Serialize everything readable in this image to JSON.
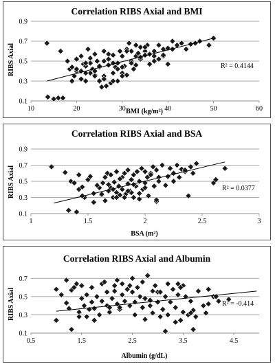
{
  "chart_data": [
    {
      "type": "scatter",
      "title": "Correlation RIBS Axial and BMI",
      "xlabel": "BMI (kg/m²)",
      "ylabel": "RIBS Axial",
      "xlim": [
        10,
        60
      ],
      "ylim": [
        0.1,
        0.9
      ],
      "xticks": [
        "10",
        "20",
        "30",
        "40",
        "50",
        "60"
      ],
      "yticks": [
        "0.1",
        "0.3",
        "0.5",
        "0.7",
        "0.9"
      ],
      "grid": "horizontal",
      "trendline": {
        "x": [
          13.5,
          50
        ],
        "y": [
          0.3,
          0.73
        ]
      },
      "annotation": "R² = 0.4144",
      "marker_color": "#1a1a1a",
      "points": {
        "x": [
          13.5,
          13.7,
          15,
          16,
          17,
          16.5,
          18,
          18.5,
          19,
          19.5,
          20,
          20,
          21,
          21,
          21.5,
          22,
          22,
          22.5,
          23,
          23,
          23.5,
          24,
          24,
          24.5,
          25,
          25,
          25.5,
          26,
          26,
          26.5,
          27,
          27,
          27.5,
          28,
          28,
          28.5,
          29,
          29,
          29.5,
          30,
          30,
          30.5,
          31,
          31,
          31.5,
          32,
          32,
          32.5,
          33,
          33,
          33.5,
          34,
          34,
          35,
          35,
          35.5,
          36,
          36,
          37,
          37,
          38,
          38,
          39,
          39,
          40,
          40,
          41,
          42,
          43,
          44,
          45,
          46,
          47,
          49,
          50,
          20,
          22,
          24,
          26,
          28,
          30,
          32,
          34,
          25,
          27,
          29,
          31,
          33,
          23,
          21,
          19,
          26,
          28,
          30,
          35,
          37,
          39,
          41,
          24,
          22
        ],
        "y": [
          0.68,
          0.14,
          0.12,
          0.13,
          0.13,
          0.6,
          0.5,
          0.42,
          0.3,
          0.35,
          0.52,
          0.4,
          0.55,
          0.32,
          0.47,
          0.45,
          0.3,
          0.62,
          0.38,
          0.48,
          0.42,
          0.36,
          0.57,
          0.5,
          0.44,
          0.3,
          0.24,
          0.6,
          0.35,
          0.25,
          0.46,
          0.57,
          0.28,
          0.38,
          0.56,
          0.44,
          0.3,
          0.48,
          0.6,
          0.38,
          0.55,
          0.45,
          0.62,
          0.36,
          0.68,
          0.5,
          0.6,
          0.42,
          0.66,
          0.55,
          0.58,
          0.52,
          0.64,
          0.6,
          0.56,
          0.66,
          0.57,
          0.47,
          0.6,
          0.55,
          0.52,
          0.66,
          0.62,
          0.55,
          0.47,
          0.63,
          0.7,
          0.66,
          0.68,
          0.62,
          0.67,
          0.68,
          0.7,
          0.66,
          0.73,
          0.42,
          0.48,
          0.4,
          0.5,
          0.3,
          0.35,
          0.48,
          0.54,
          0.45,
          0.52,
          0.42,
          0.6,
          0.46,
          0.53,
          0.4,
          0.44,
          0.32,
          0.48,
          0.44,
          0.64,
          0.5,
          0.56,
          0.62,
          0.35,
          0.38
        ]
      }
    },
    {
      "type": "scatter",
      "title": "Correlation RIBS Axial and BSA",
      "xlabel": "BSA (m²)",
      "ylabel": "RIBS Axial",
      "xlim": [
        1,
        3
      ],
      "ylim": [
        0.1,
        0.9
      ],
      "xticks": [
        "1",
        "1.5",
        "2",
        "2.5",
        "3"
      ],
      "yticks": [
        "0.1",
        "0.3",
        "0.5",
        "0.7",
        "0.9"
      ],
      "grid": "horizontal",
      "trendline": {
        "x": [
          1.2,
          2.7
        ],
        "y": [
          0.23,
          0.74
        ]
      },
      "annotation": "R² = 0.0377",
      "marker_color": "#1a1a1a",
      "points": {
        "x": [
          1.18,
          1.3,
          1.33,
          1.35,
          1.38,
          1.4,
          1.42,
          1.45,
          1.47,
          1.5,
          1.52,
          1.55,
          1.58,
          1.6,
          1.62,
          1.63,
          1.65,
          1.67,
          1.68,
          1.7,
          1.7,
          1.72,
          1.73,
          1.75,
          1.75,
          1.77,
          1.78,
          1.8,
          1.8,
          1.82,
          1.83,
          1.85,
          1.85,
          1.87,
          1.88,
          1.9,
          1.9,
          1.92,
          1.93,
          1.95,
          1.95,
          1.97,
          1.98,
          2.0,
          2.0,
          2.02,
          2.03,
          2.05,
          2.07,
          2.08,
          2.1,
          2.1,
          2.12,
          2.15,
          2.18,
          2.2,
          2.22,
          2.25,
          2.28,
          2.3,
          2.32,
          2.35,
          2.38,
          2.4,
          2.42,
          2.45,
          2.6,
          2.62,
          2.7,
          1.42,
          1.45,
          2.1,
          2.12,
          1.95,
          1.88,
          1.72,
          1.78,
          1.82,
          1.68,
          1.58,
          2.05,
          2.25,
          2.35,
          1.65,
          1.75,
          1.85,
          1.9,
          2.0,
          1.62,
          1.55
        ],
        "y": [
          0.68,
          0.61,
          0.14,
          0.5,
          0.48,
          0.12,
          0.58,
          0.43,
          0.3,
          0.52,
          0.56,
          0.35,
          0.45,
          0.42,
          0.33,
          0.48,
          0.55,
          0.6,
          0.38,
          0.42,
          0.58,
          0.3,
          0.49,
          0.36,
          0.62,
          0.44,
          0.33,
          0.55,
          0.4,
          0.6,
          0.34,
          0.47,
          0.64,
          0.38,
          0.52,
          0.3,
          0.58,
          0.44,
          0.62,
          0.35,
          0.5,
          0.66,
          0.4,
          0.48,
          0.62,
          0.55,
          0.32,
          0.6,
          0.68,
          0.44,
          0.64,
          0.25,
          0.55,
          0.7,
          0.45,
          0.56,
          0.66,
          0.6,
          0.7,
          0.55,
          0.65,
          0.62,
          0.32,
          0.68,
          0.6,
          0.72,
          0.48,
          0.52,
          0.66,
          0.4,
          0.32,
          0.27,
          0.5,
          0.28,
          0.36,
          0.4,
          0.53,
          0.3,
          0.46,
          0.45,
          0.58,
          0.5,
          0.64,
          0.26,
          0.3,
          0.38,
          0.46,
          0.42,
          0.34,
          0.24
        ]
      }
    },
    {
      "type": "scatter",
      "title": "Correlation RIBS Axial and Albumin",
      "xlabel": "Albumin (g/dL)",
      "ylabel": "RIBS Axial",
      "xlim": [
        0.5,
        5
      ],
      "ylim": [
        0.1,
        0.8
      ],
      "xticks": [
        "0.5",
        "1.5",
        "2.5",
        "3.5",
        "4.5"
      ],
      "yticks": [
        "0.1",
        "0.3",
        "0.5",
        "0.7"
      ],
      "grid": "horizontal",
      "trendline": {
        "x": [
          1.0,
          4.95
        ],
        "y": [
          0.34,
          0.56
        ]
      },
      "annotation": "R² = -0.414",
      "marker_color": "#1a1a1a",
      "points": {
        "x": [
          1.0,
          1.0,
          1.2,
          1.2,
          1.25,
          1.3,
          1.3,
          1.4,
          1.45,
          1.5,
          1.5,
          1.55,
          1.6,
          1.6,
          1.7,
          1.7,
          1.75,
          1.8,
          1.85,
          1.9,
          1.9,
          2.0,
          2.0,
          2.05,
          2.1,
          2.15,
          2.2,
          2.2,
          2.25,
          2.3,
          2.3,
          2.35,
          2.4,
          2.45,
          2.5,
          2.5,
          2.55,
          2.6,
          2.65,
          2.7,
          2.7,
          2.75,
          2.8,
          2.85,
          2.9,
          2.9,
          2.95,
          3.0,
          3.0,
          3.05,
          3.1,
          3.15,
          3.2,
          3.2,
          3.25,
          3.3,
          3.35,
          3.4,
          3.4,
          3.45,
          3.5,
          3.5,
          3.55,
          3.6,
          3.65,
          3.7,
          3.7,
          3.8,
          3.9,
          4.0,
          4.0,
          4.1,
          4.2,
          4.4,
          1.1,
          1.35,
          1.65,
          1.95,
          2.15,
          2.45,
          2.75,
          3.05,
          3.35,
          3.65,
          3.95,
          4.15,
          2.25,
          2.55,
          2.85,
          3.15,
          3.45,
          3.75,
          1.45,
          1.75,
          2.05
        ],
        "y": [
          0.58,
          0.24,
          0.68,
          0.43,
          0.37,
          0.14,
          0.57,
          0.64,
          0.33,
          0.48,
          0.62,
          0.4,
          0.52,
          0.28,
          0.44,
          0.6,
          0.37,
          0.5,
          0.3,
          0.45,
          0.64,
          0.4,
          0.55,
          0.33,
          0.48,
          0.62,
          0.42,
          0.68,
          0.36,
          0.52,
          0.64,
          0.45,
          0.58,
          0.4,
          0.55,
          0.7,
          0.44,
          0.6,
          0.5,
          0.38,
          0.66,
          0.48,
          0.73,
          0.4,
          0.56,
          0.32,
          0.62,
          0.44,
          0.55,
          0.28,
          0.36,
          0.5,
          0.64,
          0.3,
          0.44,
          0.58,
          0.38,
          0.52,
          0.64,
          0.24,
          0.33,
          0.62,
          0.5,
          0.3,
          0.45,
          0.35,
          0.14,
          0.56,
          0.4,
          0.58,
          0.42,
          0.5,
          0.45,
          0.47,
          0.52,
          0.6,
          0.36,
          0.66,
          0.56,
          0.62,
          0.25,
          0.55,
          0.22,
          0.32,
          0.32,
          0.5,
          0.38,
          0.3,
          0.46,
          0.12,
          0.6,
          0.28,
          0.28,
          0.24,
          0.38
        ]
      }
    }
  ]
}
